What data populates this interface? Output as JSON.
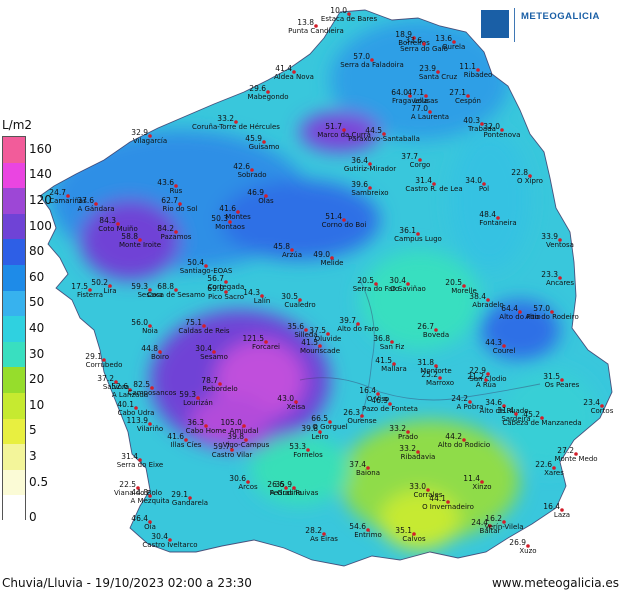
{
  "header": {
    "logo_text": "METEOGALICIA"
  },
  "legend": {
    "title": "L/m2",
    "items": [
      {
        "label": "160",
        "color": "#f25c9a"
      },
      {
        "label": "140",
        "color": "#ea45e1"
      },
      {
        "label": "120",
        "color": "#9d47d6"
      },
      {
        "label": "100",
        "color": "#6f43d6"
      },
      {
        "label": "80",
        "color": "#2e5fe6"
      },
      {
        "label": "60",
        "color": "#1e8be8"
      },
      {
        "label": "50",
        "color": "#37b2ee"
      },
      {
        "label": "40",
        "color": "#2fd1e0"
      },
      {
        "label": "30",
        "color": "#39dfc0"
      },
      {
        "label": "20",
        "color": "#96dd2c"
      },
      {
        "label": "10",
        "color": "#c6ea30"
      },
      {
        "label": "5",
        "color": "#e8ef40"
      },
      {
        "label": "3",
        "color": "#f3f59a"
      },
      {
        "label": "0.5",
        "color": "#fbfbd6"
      },
      {
        "label": "0",
        "color": "#ffffff"
      }
    ]
  },
  "stations": [
    {
      "name": "Estaca de Bares",
      "value": "10.0"
    },
    {
      "name": "Punta Candieira",
      "value": "13.8"
    },
    {
      "name": "Borreiros",
      "value": "18.9"
    },
    {
      "name": "Serra do Galo",
      "value": "33.6"
    },
    {
      "name": "Burela",
      "value": "13.6"
    },
    {
      "name": "Aldea Nova",
      "value": "41.4"
    },
    {
      "name": "Serra da Faladoira",
      "value": "57.0"
    },
    {
      "name": "Santa Cruz",
      "value": "23.9"
    },
    {
      "name": "Ribadeo",
      "value": "11.1"
    },
    {
      "name": "Mabegondo",
      "value": "29.6"
    },
    {
      "name": "Coruña-Torre de Hércules",
      "value": "33.2"
    },
    {
      "name": "Vilagarcía",
      "value": "32.9"
    },
    {
      "name": "Guisamo",
      "value": "45.9"
    },
    {
      "name": "Marco da Curra",
      "value": "51.7"
    },
    {
      "name": "Fragavella",
      "value": "64.0"
    },
    {
      "name": "Lousas",
      "value": "47.1"
    },
    {
      "name": "Cespón",
      "value": "27.1"
    },
    {
      "name": "A Laurenta",
      "value": "77.0"
    },
    {
      "name": "Trabada",
      "value": "40.3"
    },
    {
      "name": "Pontenova",
      "value": "32.0"
    },
    {
      "name": "Paraxovo-Santaballa",
      "value": "44.5"
    },
    {
      "name": "Gutiriz-Mirador",
      "value": "36.4"
    },
    {
      "name": "Corgo",
      "value": "37.7"
    },
    {
      "name": "Camariñas",
      "value": "24.7"
    },
    {
      "name": "A Gándara",
      "value": "37.6"
    },
    {
      "name": "Rus",
      "value": "43.6"
    },
    {
      "name": "Rio do Sol",
      "value": "62.7"
    },
    {
      "name": "Sobrado",
      "value": "42.6"
    },
    {
      "name": "Olas",
      "value": "46.9"
    },
    {
      "name": "Sambreixo",
      "value": "39.6"
    },
    {
      "name": "Castro R. de Lea",
      "value": "31.4"
    },
    {
      "name": "Pol",
      "value": "34.0"
    },
    {
      "name": "O Xipro",
      "value": "22.8"
    },
    {
      "name": "Coto Muiño",
      "value": "84.3"
    },
    {
      "name": "Pazamos",
      "value": "84.2"
    },
    {
      "name": "Monte Iroite",
      "value": "58.8"
    },
    {
      "name": "Montes",
      "value": "41.6"
    },
    {
      "name": "Montaos",
      "value": "50.3"
    },
    {
      "name": "Corno do Boi",
      "value": "51.4"
    },
    {
      "name": "Campus Lugo",
      "value": "36.1"
    },
    {
      "name": "Fontaneira",
      "value": "48.4"
    },
    {
      "name": "Ventosa",
      "value": "33.9"
    },
    {
      "name": "Arzúa",
      "value": "45.8"
    },
    {
      "name": "Melide",
      "value": "49.0"
    },
    {
      "name": "Santiago-EOAS",
      "value": "50.4"
    },
    {
      "name": "Cortegada",
      "value": "56.7"
    },
    {
      "name": "Fisterra",
      "value": "17.5"
    },
    {
      "name": "Lira",
      "value": "50.2"
    },
    {
      "name": "Sesaxa",
      "value": "59.3"
    },
    {
      "name": "Casa de Sesamo",
      "value": "68.8"
    },
    {
      "name": "Pico Sacro",
      "value": "69.0"
    },
    {
      "name": "Lalín",
      "value": "14.3"
    },
    {
      "name": "Serra do Faro",
      "value": "20.5"
    },
    {
      "name": "O Saviñao",
      "value": "30.4"
    },
    {
      "name": "Morelle",
      "value": "20.5"
    },
    {
      "name": "Ancares",
      "value": "23.3"
    },
    {
      "name": "Abradelo",
      "value": "38.4"
    },
    {
      "name": "Alto do Poio",
      "value": "64.4"
    },
    {
      "name": "Alto do Rodeiro",
      "value": "57.0"
    },
    {
      "name": "Noia",
      "value": "56.0"
    },
    {
      "name": "Caldas de Reis",
      "value": "75.1"
    },
    {
      "name": "Forcarei",
      "value": "121.5"
    },
    {
      "name": "Silleda",
      "value": "35.6"
    },
    {
      "name": "Oluvide",
      "value": "37.5"
    },
    {
      "name": "Sesamo",
      "value": "30.4"
    },
    {
      "name": "Mouriscade",
      "value": "41.5"
    },
    {
      "name": "Alto do Faro",
      "value": "39.7"
    },
    {
      "name": "Boveda",
      "value": "26.7"
    },
    {
      "name": "Courel",
      "value": "44.3"
    },
    {
      "name": "Corrubedo",
      "value": "29.1"
    },
    {
      "name": "Boiro",
      "value": "44.8"
    },
    {
      "name": "San Fiz",
      "value": "36.8"
    },
    {
      "name": "Mallara",
      "value": "41.5"
    },
    {
      "name": "Monforte",
      "value": "31.8"
    },
    {
      "name": "Marroxo",
      "value": "25.2"
    },
    {
      "name": "Salvora",
      "value": "37.2"
    },
    {
      "name": "A Lanzada",
      "value": "52.6"
    },
    {
      "name": "Camposancos",
      "value": "82.5"
    },
    {
      "name": "Rebordelo",
      "value": "78.7"
    },
    {
      "name": "Lourizán",
      "value": "59.3"
    },
    {
      "name": "Cabo Udra",
      "value": "40.1"
    },
    {
      "name": "San Clodio",
      "value": "22.9"
    },
    {
      "name": "A Rúa",
      "value": "21.2"
    },
    {
      "name": "Os Peares",
      "value": "31.5"
    },
    {
      "name": "A Pobra",
      "value": "24.2"
    },
    {
      "name": "Alto de Ruado",
      "value": "34.6"
    },
    {
      "name": "Cortos",
      "value": "23.4"
    },
    {
      "name": "Sardeira",
      "value": "31.4"
    },
    {
      "name": "O Viso",
      "value": "16.4"
    },
    {
      "name": "Pazo de Fonteta",
      "value": "46.9"
    },
    {
      "name": "Xeisa",
      "value": "43.0"
    },
    {
      "name": "Amiudal",
      "value": "105.0"
    },
    {
      "name": "Vilariño",
      "value": "113.9"
    },
    {
      "name": "Cabo Home",
      "value": "36.3"
    },
    {
      "name": "O Gorguel",
      "value": "66.5"
    },
    {
      "name": "Leiro",
      "value": "39.8"
    },
    {
      "name": "Ourense",
      "value": "26.3"
    },
    {
      "name": "Prado",
      "value": "33.2"
    },
    {
      "name": "Alto do Rodicio",
      "value": "44.2"
    },
    {
      "name": "Cabeza de Manzaneda",
      "value": "45.2"
    },
    {
      "name": "Serra do Eixe",
      "value": "31.4"
    },
    {
      "name": "Illas Cíes",
      "value": "41.6"
    },
    {
      "name": "Vigo-Campus",
      "value": "39.8"
    },
    {
      "name": "Castro Vilar",
      "value": "59.7"
    },
    {
      "name": "Fornelos",
      "value": "53.3"
    },
    {
      "name": "Ribadavia",
      "value": "33.2"
    },
    {
      "name": "Monte Medo",
      "value": "27.2"
    },
    {
      "name": "Xares",
      "value": "22.6"
    },
    {
      "name": "Viana do Bolo",
      "value": "22.5"
    },
    {
      "name": "Baiona",
      "value": "37.4"
    },
    {
      "name": "Gandarela",
      "value": "29.1"
    },
    {
      "name": "Arcos",
      "value": "30.6"
    },
    {
      "name": "Pedras Ruivas",
      "value": "35.9"
    },
    {
      "name": "Corrales",
      "value": "33.0"
    },
    {
      "name": "Xinzo",
      "value": "11.4"
    },
    {
      "name": "O Invernadeiro",
      "value": "44.1"
    },
    {
      "name": "Laza",
      "value": "16.4"
    },
    {
      "name": "A Mezquita",
      "value": "44.8"
    },
    {
      "name": "Oia",
      "value": "46.4"
    },
    {
      "name": "Castro Iveltarco",
      "value": "30.4"
    },
    {
      "name": "As Eiras",
      "value": "28.2"
    },
    {
      "name": "Entrimo",
      "value": "54.6"
    },
    {
      "name": "Calvos",
      "value": "35.1"
    },
    {
      "name": "Baltar",
      "value": "24.4"
    },
    {
      "name": "Verín-Vilela",
      "value": "16.2"
    },
    {
      "name": "Xuzo",
      "value": "26.9"
    },
    {
      "name": "A Gudiña",
      "value": "26.6"
    },
    {
      "name": "Cualedro",
      "value": "30.5"
    }
  ],
  "footer": {
    "caption": "Chuvia/Lluvia - 19/10/2023 02:00 a 23:30",
    "website": "www.meteogalicia.es"
  }
}
